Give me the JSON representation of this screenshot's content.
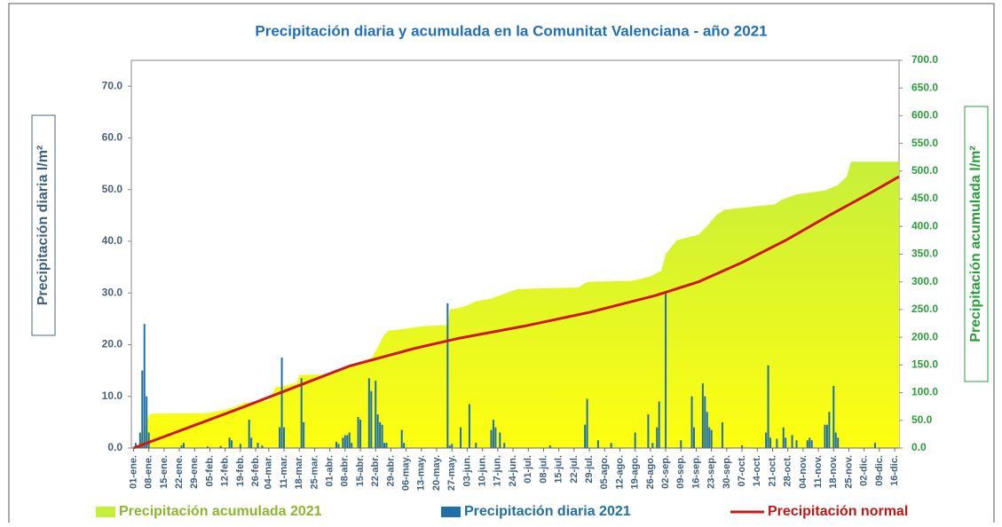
{
  "chart_data": {
    "type": "combo",
    "title": "Precipitación diaria y acumulada en la Comunitat Valenciana - año 2021",
    "y_label": "Precipitación diaria l/m²",
    "y2_label": "Precipitación acumulada l/m²",
    "xlim": [
      0,
      352
    ],
    "xticks": [
      {
        "value": 1,
        "label": "01-ene."
      },
      {
        "value": 8,
        "label": "08-ene."
      },
      {
        "value": 15,
        "label": "15-ene."
      },
      {
        "value": 22,
        "label": "22-ene."
      },
      {
        "value": 29,
        "label": "29-ene."
      },
      {
        "value": 36,
        "label": "05-feb."
      },
      {
        "value": 43,
        "label": "12-feb."
      },
      {
        "value": 50,
        "label": "19-feb."
      },
      {
        "value": 57,
        "label": "26-feb."
      },
      {
        "value": 63,
        "label": "04-mar."
      },
      {
        "value": 70,
        "label": "11-mar."
      },
      {
        "value": 77,
        "label": "18-mar."
      },
      {
        "value": 84,
        "label": "25-mar."
      },
      {
        "value": 91,
        "label": "01-abr."
      },
      {
        "value": 98,
        "label": "08-abr."
      },
      {
        "value": 105,
        "label": "15-abr."
      },
      {
        "value": 112,
        "label": "22-abr."
      },
      {
        "value": 119,
        "label": "29-abr."
      },
      {
        "value": 126,
        "label": "06-may."
      },
      {
        "value": 133,
        "label": "13-may."
      },
      {
        "value": 140,
        "label": "20-may."
      },
      {
        "value": 147,
        "label": "27-may."
      },
      {
        "value": 154,
        "label": "03-jun."
      },
      {
        "value": 161,
        "label": "10-jun."
      },
      {
        "value": 168,
        "label": "17-jun."
      },
      {
        "value": 175,
        "label": "24-jun."
      },
      {
        "value": 182,
        "label": "01-jul."
      },
      {
        "value": 189,
        "label": "08-jul."
      },
      {
        "value": 196,
        "label": "15-jul."
      },
      {
        "value": 203,
        "label": "22-jul."
      },
      {
        "value": 210,
        "label": "29-jul."
      },
      {
        "value": 217,
        "label": "05-ago."
      },
      {
        "value": 224,
        "label": "12-ago."
      },
      {
        "value": 231,
        "label": "19-ago."
      },
      {
        "value": 238,
        "label": "26-ago."
      },
      {
        "value": 245,
        "label": "02-sep."
      },
      {
        "value": 252,
        "label": "09-sep."
      },
      {
        "value": 259,
        "label": "16-sep."
      },
      {
        "value": 266,
        "label": "23-sep."
      },
      {
        "value": 273,
        "label": "30-sep."
      },
      {
        "value": 280,
        "label": "07-oct."
      },
      {
        "value": 287,
        "label": "14-oct."
      },
      {
        "value": 294,
        "label": "21-oct."
      },
      {
        "value": 301,
        "label": "28-oct."
      },
      {
        "value": 308,
        "label": "04-nov."
      },
      {
        "value": 315,
        "label": "11-nov."
      },
      {
        "value": 322,
        "label": "18-nov."
      },
      {
        "value": 329,
        "label": "25-nov."
      },
      {
        "value": 336,
        "label": "02-dic."
      },
      {
        "value": 343,
        "label": "09-dic."
      },
      {
        "value": 350,
        "label": "16-dic."
      }
    ],
    "ylim": [
      0,
      75
    ],
    "yticks": [
      {
        "value": 0,
        "label": "0.0"
      },
      {
        "value": 10,
        "label": "10.0"
      },
      {
        "value": 20,
        "label": "20.0"
      },
      {
        "value": 30,
        "label": "30.0"
      },
      {
        "value": 40,
        "label": "40.0"
      },
      {
        "value": 50,
        "label": "50.0"
      },
      {
        "value": 60,
        "label": "60.0"
      },
      {
        "value": 70,
        "label": "70.0"
      }
    ],
    "y2lim": [
      0,
      700
    ],
    "y2ticks": [
      {
        "value": 0,
        "label": "0.0"
      },
      {
        "value": 50,
        "label": "50.0"
      },
      {
        "value": 100,
        "label": "100.0"
      },
      {
        "value": 150,
        "label": "150.0"
      },
      {
        "value": 200,
        "label": "200.0"
      },
      {
        "value": 250,
        "label": "250.0"
      },
      {
        "value": 300,
        "label": "300.0"
      },
      {
        "value": 350,
        "label": "350.0"
      },
      {
        "value": 400,
        "label": "400.0"
      },
      {
        "value": 450,
        "label": "450.0"
      },
      {
        "value": 500,
        "label": "500.0"
      },
      {
        "value": 550,
        "label": "550.0"
      },
      {
        "value": 600,
        "label": "600.0"
      },
      {
        "value": 650,
        "label": "650.0"
      },
      {
        "value": 700,
        "label": "700.0"
      }
    ],
    "series": [
      {
        "name": "Precipitación acumulada 2021",
        "type": "area",
        "axis": "y2",
        "color": "#c6ef3a",
        "x": [
          1,
          3,
          5,
          7,
          8,
          10,
          35,
          38,
          44,
          47,
          50,
          52,
          57,
          63,
          64,
          66,
          70,
          76,
          77,
          90,
          96,
          101,
          105,
          110,
          112,
          114,
          116,
          118,
          125,
          134,
          145,
          146,
          150,
          154,
          158,
          165,
          172,
          177,
          185,
          205,
          209,
          230,
          238,
          243,
          245,
          250,
          260,
          265,
          268,
          272,
          276,
          295,
          298,
          305,
          318,
          324,
          328,
          330,
          352
        ],
        "values": [
          0,
          5,
          25,
          45,
          60,
          62,
          63,
          65,
          70,
          74,
          78,
          82,
          83,
          86,
          92,
          110,
          112,
          118,
          132,
          133,
          140,
          148,
          155,
          162,
          175,
          190,
          205,
          212,
          215,
          220,
          222,
          250,
          253,
          257,
          265,
          270,
          280,
          287,
          288,
          290,
          300,
          302,
          310,
          320,
          350,
          375,
          385,
          405,
          420,
          430,
          432,
          440,
          448,
          458,
          465,
          475,
          490,
          517,
          517
        ]
      },
      {
        "name": "Precipitación diaria 2021",
        "type": "bar",
        "axis": "y",
        "color": "#1f6fa8",
        "x": [
          2,
          4,
          5,
          6,
          7,
          8,
          23,
          24,
          35,
          41,
          45,
          46,
          50,
          54,
          55,
          58,
          60,
          68,
          69,
          70,
          78,
          79,
          94,
          95,
          97,
          98,
          99,
          100,
          101,
          104,
          105,
          109,
          110,
          112,
          113,
          114,
          115,
          116,
          117,
          124,
          125,
          145,
          146,
          147,
          151,
          155,
          158,
          165,
          166,
          167,
          169,
          171,
          192,
          208,
          209,
          214,
          220,
          231,
          237,
          239,
          241,
          242,
          245,
          252,
          257,
          258,
          262,
          263,
          264,
          265,
          266,
          271,
          280,
          291,
          292,
          293,
          296,
          299,
          300,
          303,
          305,
          310,
          311,
          312,
          318,
          319,
          320,
          322,
          323,
          324,
          341
        ],
        "values": [
          1,
          3,
          15,
          24,
          10,
          3,
          0.5,
          1,
          0.3,
          0.4,
          2,
          1.5,
          0.8,
          5.5,
          2,
          1,
          0.5,
          4,
          17.5,
          4,
          13.5,
          5,
          1.2,
          0.8,
          2,
          2.5,
          2.5,
          3,
          1,
          6,
          5.5,
          13.5,
          11,
          13,
          6.5,
          5,
          4.5,
          1,
          1,
          3.5,
          1,
          28,
          0.5,
          0.8,
          4,
          8.5,
          1,
          3.5,
          5.5,
          4,
          3,
          1,
          0.5,
          4.5,
          9.5,
          1.5,
          1,
          3,
          6.5,
          1,
          4,
          9,
          30,
          1.5,
          10,
          4,
          12.5,
          10,
          7,
          4,
          3.5,
          5,
          0.5,
          3,
          16,
          2,
          1.8,
          4,
          2,
          2.5,
          1.5,
          1.5,
          2,
          1.5,
          4.5,
          4.5,
          7,
          12,
          3,
          2,
          1
        ]
      },
      {
        "name": "Precipitación normal",
        "type": "line",
        "axis": "y2",
        "color": "#d01616",
        "x": [
          1,
          50,
          100,
          130,
          150,
          180,
          210,
          240,
          260,
          280,
          300,
          320,
          340,
          352
        ],
        "values": [
          0,
          72,
          148,
          180,
          198,
          220,
          245,
          275,
          300,
          335,
          375,
          420,
          463,
          490
        ]
      }
    ]
  }
}
